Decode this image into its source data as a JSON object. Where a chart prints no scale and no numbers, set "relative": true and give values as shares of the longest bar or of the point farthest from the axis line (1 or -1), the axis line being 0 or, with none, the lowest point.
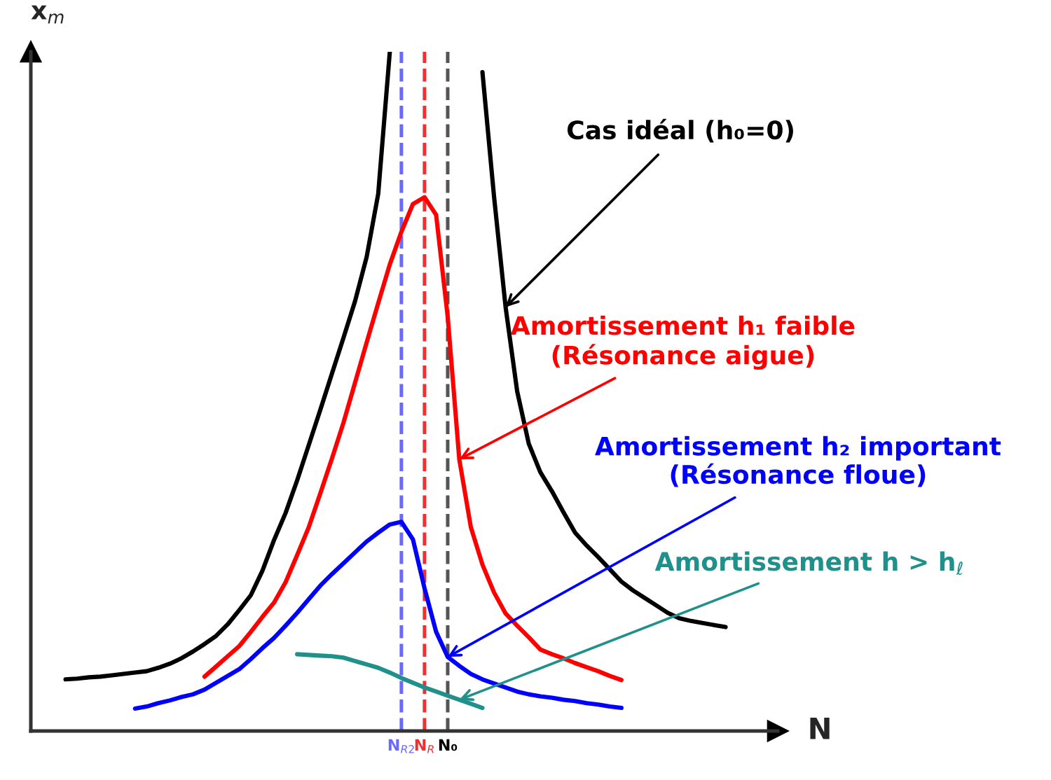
{
  "chart_data": {
    "type": "line",
    "relative": true,
    "categories": [
      null,
      null,
      null,
      null,
      null,
      null,
      null,
      null,
      null,
      null,
      null,
      null,
      null,
      null,
      null,
      null,
      null,
      null,
      null,
      null,
      null,
      null,
      null,
      null,
      null,
      null,
      null,
      null,
      null,
      null,
      null,
      null,
      "N$_{R2}$",
      null,
      "N$_{R}$",
      null,
      "N₀",
      null,
      null,
      null,
      null,
      null,
      null,
      null,
      null,
      null,
      null,
      null,
      null,
      null,
      null,
      null,
      null,
      null,
      null,
      null,
      null,
      null,
      null,
      null,
      null,
      null,
      null,
      null,
      null
    ],
    "xlabel": "N",
    "ylabel": "x$_{m}$",
    "legend": false,
    "line_style": "solid",
    "marker": "none",
    "series": [
      {
        "color": "#000000",
        "values": [
          null,
          null,
          null,
          0.076,
          0.077,
          0.079,
          0.08,
          0.082,
          0.084,
          0.086,
          0.088,
          0.093,
          0.099,
          0.107,
          0.117,
          0.128,
          0.14,
          0.157,
          0.178,
          0.2,
          0.236,
          0.281,
          0.321,
          0.369,
          0.421,
          0.473,
          0.526,
          0.579,
          0.633,
          0.698,
          0.791,
          1.0,
          null,
          null,
          null,
          null,
          null,
          null,
          null,
          0.97,
          0.787,
          0.624,
          0.5,
          0.423,
          0.381,
          0.353,
          0.322,
          0.292,
          0.273,
          0.256,
          0.238,
          0.22,
          0.207,
          0.196,
          0.185,
          0.174,
          0.166,
          0.162,
          0.159,
          0.156,
          0.153,
          null,
          null,
          null,
          null
        ]
      },
      {
        "color": "#ff0000",
        "values": [
          null,
          null,
          null,
          null,
          null,
          null,
          null,
          null,
          null,
          null,
          null,
          null,
          null,
          null,
          null,
          0.08,
          0.095,
          0.11,
          0.125,
          0.146,
          0.168,
          0.189,
          0.219,
          0.259,
          0.3,
          0.35,
          0.401,
          0.454,
          0.513,
          0.572,
          0.63,
          0.687,
          0.735,
          0.776,
          0.786,
          0.76,
          0.61,
          0.4,
          0.3,
          0.245,
          0.204,
          0.173,
          0.155,
          0.138,
          0.12,
          0.113,
          0.107,
          0.1,
          0.094,
          0.088,
          0.081,
          0.075,
          null,
          null,
          null,
          null,
          null,
          null,
          null,
          null,
          null,
          null,
          null,
          null,
          null
        ]
      },
      {
        "color": "#0000ff",
        "values": [
          null,
          null,
          null,
          null,
          null,
          null,
          null,
          null,
          null,
          0.033,
          0.036,
          0.041,
          0.045,
          0.05,
          0.054,
          0.061,
          0.071,
          0.081,
          0.091,
          0.106,
          0.122,
          0.137,
          0.155,
          0.174,
          0.194,
          0.214,
          0.231,
          0.247,
          0.263,
          0.279,
          0.292,
          0.304,
          0.308,
          0.282,
          0.21,
          0.146,
          0.109,
          0.096,
          0.084,
          0.076,
          0.07,
          0.064,
          0.058,
          0.054,
          0.051,
          0.049,
          0.046,
          0.044,
          0.041,
          0.039,
          0.036,
          0.034,
          null,
          null,
          null,
          null,
          null,
          null,
          null,
          null,
          null,
          null,
          null,
          null,
          null
        ]
      },
      {
        "color": "#20908a",
        "values": [
          null,
          null,
          null,
          null,
          null,
          null,
          null,
          null,
          null,
          null,
          null,
          null,
          null,
          null,
          null,
          null,
          null,
          null,
          null,
          null,
          null,
          null,
          null,
          0.113,
          0.112,
          0.111,
          0.11,
          0.108,
          0.103,
          0.098,
          0.093,
          0.086,
          0.078,
          0.071,
          0.064,
          0.058,
          0.052,
          0.046,
          0.04,
          0.034,
          null,
          null,
          null,
          null,
          null,
          null,
          null,
          null,
          null,
          null,
          null,
          null,
          null,
          null,
          null,
          null,
          null,
          null,
          null,
          null,
          null,
          null,
          null,
          null,
          null
        ]
      }
    ],
    "ref_lines": [
      {
        "axis": "x",
        "value": "N$_{R2}$",
        "color": "#6a6aff",
        "line_style": "dashed"
      },
      {
        "axis": "x",
        "value": "N$_{R}$",
        "color": "#f03030",
        "line_style": "dashed"
      },
      {
        "axis": "x",
        "value": "N₀",
        "color": "#555555",
        "line_style": "dashed"
      }
    ],
    "annotations": [
      "Cas idéal (h₀=0)",
      "Amortissement h₁ faible\n(Résonance aigue)",
      "Amortissement h₂ important\n(Résonance floue)",
      "Amortissement h > h$_{ℓ}$"
    ]
  }
}
